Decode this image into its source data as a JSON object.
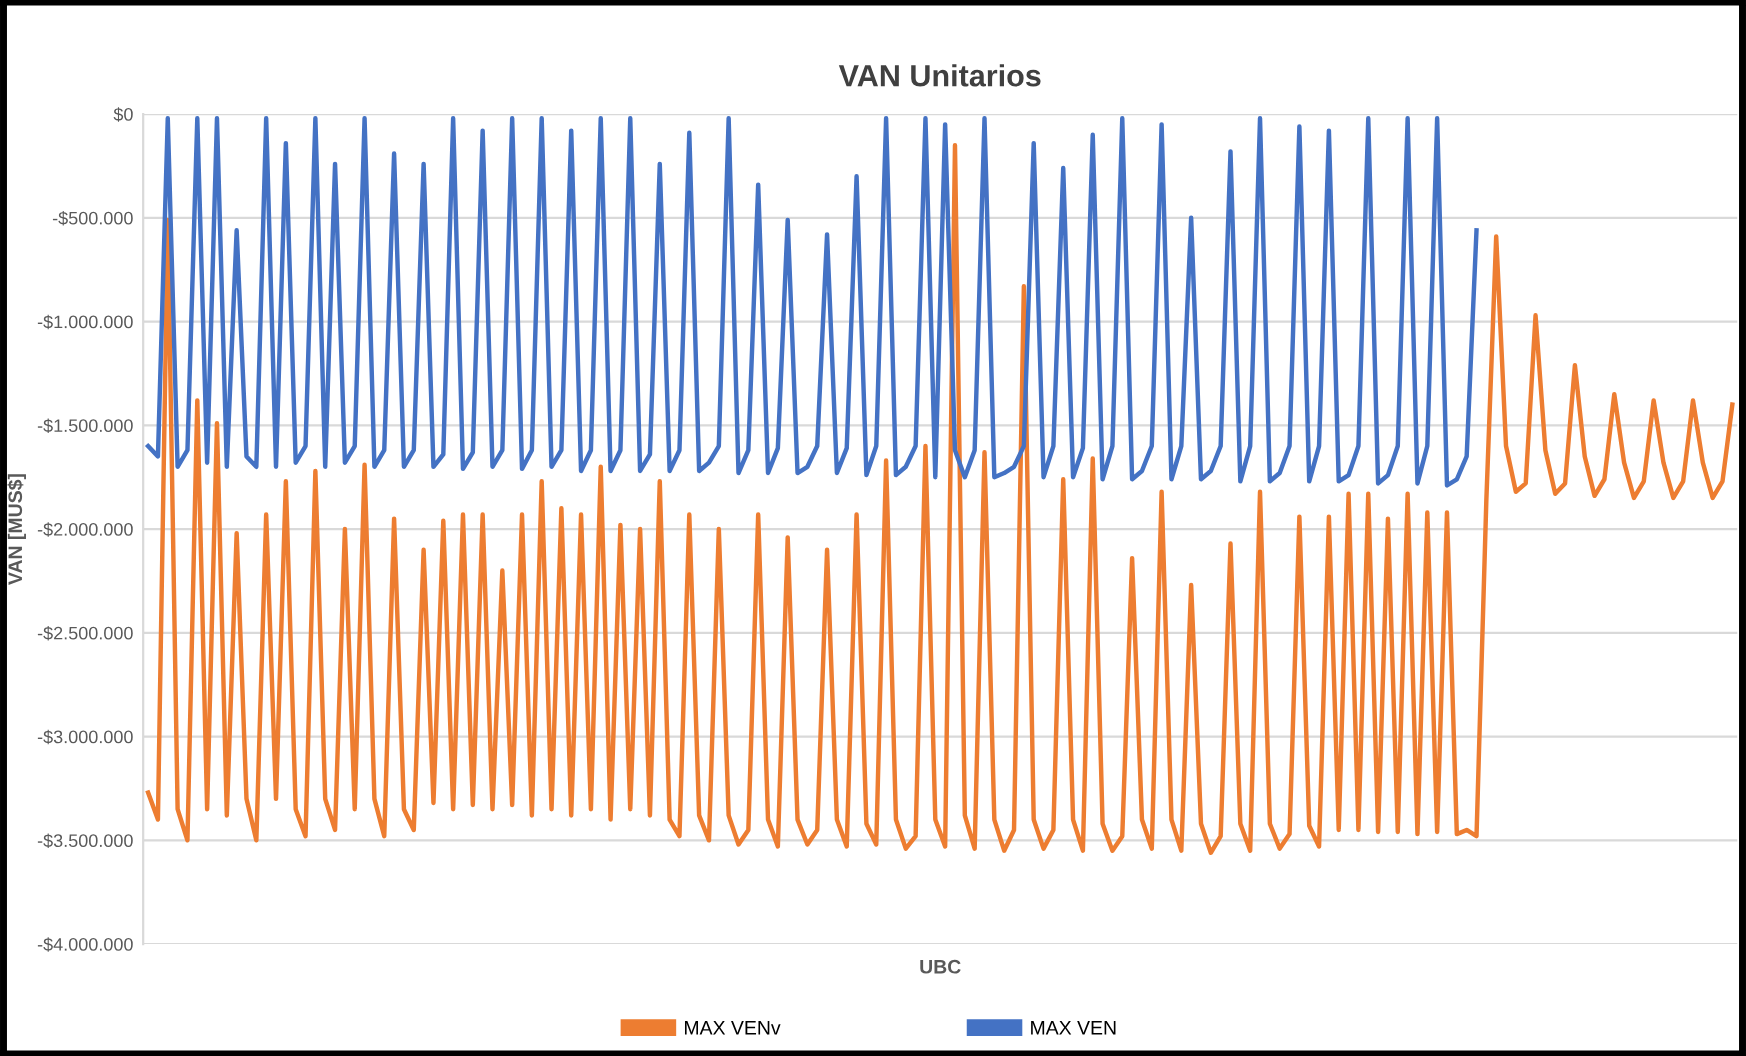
{
  "chart_data": {
    "type": "line",
    "title": "VAN Unitarios",
    "xlabel": "UBC",
    "ylabel": "VAN [MUS$]",
    "categories": [
      null,
      null,
      null,
      null,
      null,
      null,
      null,
      null,
      null,
      null,
      null,
      null,
      null,
      null,
      null,
      null,
      null,
      null,
      null,
      null,
      null,
      null,
      null,
      null,
      null,
      null,
      null,
      null,
      null,
      null,
      null,
      null,
      null,
      null,
      null,
      null,
      null,
      null,
      null,
      null,
      null,
      null,
      null,
      null,
      null,
      null,
      null,
      null,
      null,
      null,
      null,
      null,
      null,
      null,
      null,
      null,
      null,
      null,
      null,
      null,
      null,
      null,
      null,
      null,
      null,
      null,
      null,
      null,
      null,
      null,
      null,
      null,
      null,
      null,
      null,
      null,
      null,
      null,
      null,
      null,
      null,
      null,
      null,
      null,
      null,
      null,
      null,
      null,
      null,
      null,
      null,
      null,
      null,
      null,
      null,
      null,
      null,
      null,
      null,
      null,
      null,
      null,
      null,
      null,
      null,
      null,
      null,
      null,
      null,
      null,
      null,
      null,
      null,
      null,
      null,
      null,
      null,
      null,
      null,
      null,
      null,
      null,
      null,
      null,
      null,
      null,
      null,
      null,
      null,
      null,
      null,
      null,
      null,
      null,
      null,
      null,
      null,
      null,
      null,
      null,
      null,
      null,
      null,
      null,
      null,
      null,
      null,
      null,
      null,
      null,
      null,
      null,
      null,
      null,
      null,
      null,
      null,
      null,
      null,
      null,
      null,
      null
    ],
    "series": [
      {
        "name": "MAX VENv",
        "color": "#ed7d31",
        "values": [
          -3270000,
          -3400000,
          -510000,
          -3350000,
          -3500000,
          -1380000,
          -3350000,
          -1490000,
          -3380000,
          -2020000,
          -3300000,
          -3500000,
          -1930000,
          -3300000,
          -1770000,
          -3350000,
          -3480000,
          -1720000,
          -3300000,
          -3450000,
          -2000000,
          -3350000,
          -1690000,
          -3300000,
          -3480000,
          -1950000,
          -3350000,
          -3450000,
          -2100000,
          -3320000,
          -1960000,
          -3350000,
          -1930000,
          -3330000,
          -1930000,
          -3350000,
          -2200000,
          -3330000,
          -1930000,
          -3380000,
          -1770000,
          -3350000,
          -1900000,
          -3380000,
          -1930000,
          -3350000,
          -1700000,
          -3400000,
          -1980000,
          -3350000,
          -2000000,
          -3380000,
          -1770000,
          -3400000,
          -3480000,
          -1930000,
          -3380000,
          -3500000,
          -2000000,
          -3380000,
          -3520000,
          -3450000,
          -1930000,
          -3400000,
          -3530000,
          -2040000,
          -3400000,
          -3520000,
          -3450000,
          -2100000,
          -3400000,
          -3530000,
          -1930000,
          -3420000,
          -3520000,
          -1670000,
          -3400000,
          -3540000,
          -3480000,
          -1600000,
          -3400000,
          -3530000,
          -150000,
          -3380000,
          -3540000,
          -1630000,
          -3400000,
          -3550000,
          -3450000,
          -830000,
          -3400000,
          -3540000,
          -3450000,
          -1760000,
          -3400000,
          -3550000,
          -1660000,
          -3420000,
          -3550000,
          -3480000,
          -2140000,
          -3400000,
          -3540000,
          -1820000,
          -3400000,
          -3550000,
          -2270000,
          -3420000,
          -3560000,
          -3480000,
          -2070000,
          -3420000,
          -3550000,
          -1820000,
          -3420000,
          -3540000,
          -3470000,
          -1940000,
          -3430000,
          -3530000,
          -1940000,
          -3450000,
          -1830000,
          -3450000,
          -1830000,
          -3460000,
          -1950000,
          -3460000,
          -1830000,
          -3470000,
          -1920000,
          -3460000,
          -1920000,
          -3470000,
          -3450000,
          -3480000,
          -1860000,
          -590000,
          -1600000,
          -1820000,
          -1780000,
          -970000,
          -1620000,
          -1830000,
          -1780000,
          -1210000,
          -1650000,
          -1840000,
          -1760000,
          -1350000,
          -1680000,
          -1850000,
          -1770000,
          -1380000,
          -1680000,
          -1850000,
          -1770000,
          -1380000,
          -1680000,
          -1850000,
          -1770000,
          -1400000
        ]
      },
      {
        "name": "MAX VEN",
        "color": "#4472c4",
        "values": [
          -1600000,
          -1650000,
          -20000,
          -1700000,
          -1620000,
          -20000,
          -1680000,
          -20000,
          -1700000,
          -560000,
          -1650000,
          -1700000,
          -20000,
          -1700000,
          -140000,
          -1680000,
          -1600000,
          -20000,
          -1700000,
          -240000,
          -1680000,
          -1600000,
          -20000,
          -1700000,
          -1620000,
          -190000,
          -1700000,
          -1620000,
          -240000,
          -1700000,
          -1640000,
          -20000,
          -1710000,
          -1630000,
          -80000,
          -1700000,
          -1620000,
          -20000,
          -1710000,
          -1620000,
          -20000,
          -1700000,
          -1620000,
          -80000,
          -1720000,
          -1620000,
          -20000,
          -1720000,
          -1620000,
          -20000,
          -1720000,
          -1640000,
          -240000,
          -1720000,
          -1620000,
          -90000,
          -1720000,
          -1680000,
          -1600000,
          -20000,
          -1730000,
          -1620000,
          -340000,
          -1730000,
          -1610000,
          -510000,
          -1730000,
          -1700000,
          -1600000,
          -580000,
          -1730000,
          -1610000,
          -300000,
          -1740000,
          -1600000,
          -20000,
          -1740000,
          -1700000,
          -1600000,
          -20000,
          -1750000,
          -50000,
          -1620000,
          -1750000,
          -1620000,
          -20000,
          -1750000,
          -1730000,
          -1700000,
          -1600000,
          -140000,
          -1750000,
          -1600000,
          -260000,
          -1750000,
          -1610000,
          -100000,
          -1760000,
          -1600000,
          -20000,
          -1760000,
          -1720000,
          -1600000,
          -50000,
          -1760000,
          -1600000,
          -500000,
          -1760000,
          -1720000,
          -1600000,
          -180000,
          -1770000,
          -1600000,
          -20000,
          -1770000,
          -1730000,
          -1600000,
          -60000,
          -1770000,
          -1600000,
          -80000,
          -1770000,
          -1740000,
          -1600000,
          -20000,
          -1780000,
          -1740000,
          -1600000,
          -20000,
          -1780000,
          -1600000,
          -20000,
          -1790000,
          -1760000,
          -1650000,
          -560000,
          null,
          null,
          null,
          null,
          null,
          null,
          null,
          null,
          null,
          null,
          null,
          null,
          null,
          null,
          null,
          null,
          null,
          null,
          null,
          null,
          null,
          null,
          null,
          null,
          null,
          null
        ]
      }
    ],
    "ylim": [
      -4000000,
      0
    ],
    "yticks": [
      {
        "value": 0,
        "label": "$0"
      },
      {
        "value": -500000,
        "label": "-$500.000"
      },
      {
        "value": -1000000,
        "label": "-$1.000.000"
      },
      {
        "value": -1500000,
        "label": "-$1.500.000"
      },
      {
        "value": -2000000,
        "label": "-$2.000.000"
      },
      {
        "value": -2500000,
        "label": "-$2.500.000"
      },
      {
        "value": -3000000,
        "label": "-$3.000.000"
      },
      {
        "value": -3500000,
        "label": "-$3.500.000"
      },
      {
        "value": -4000000,
        "label": "-$4.000.000"
      }
    ],
    "grid": "y",
    "legend": "bottom",
    "marker": "none",
    "line_style": "solid"
  }
}
